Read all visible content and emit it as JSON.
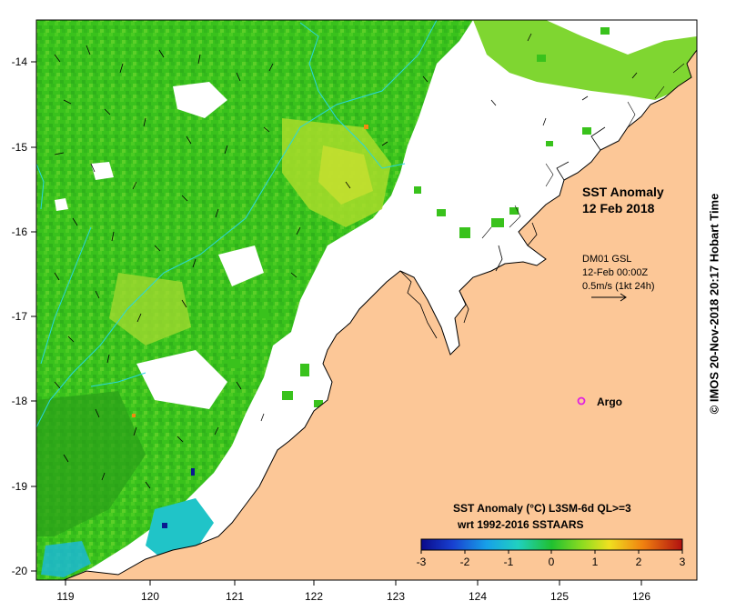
{
  "map": {
    "title_line1": "SST Anomaly",
    "title_line2": "12 Feb 2018",
    "current_source": "DM01 GSL",
    "current_time": "12-Feb 00:00Z",
    "current_scale": "0.5m/s (1kt 24h)",
    "argo_label": "Argo",
    "credit": "© IMOS 20-Nov-2018 20:17 Hobart Time",
    "colorbar_title": "SST Anomaly (°C) L3SM-6d QL>=3",
    "colorbar_subtitle": "wrt 1992-2016 SSTAARS",
    "colorbar_ticks": [
      "-3",
      "-2",
      "-1",
      "0",
      "1",
      "2",
      "3"
    ],
    "lat_ticks": [
      "-14",
      "-15",
      "-16",
      "-17",
      "-18",
      "-19",
      "-20"
    ],
    "lon_ticks": [
      "119",
      "120",
      "121",
      "122",
      "123",
      "124",
      "125",
      "126"
    ],
    "colors": {
      "land": "#fcc797",
      "ocean_main": "#39c21c",
      "ocean_light": "#7fd631",
      "ocean_dark": "#2aa01a",
      "warm": "#cfe12a",
      "cyan": "#20c4c8",
      "isobath": "#29d6e0",
      "argo": "#e020e0"
    }
  }
}
